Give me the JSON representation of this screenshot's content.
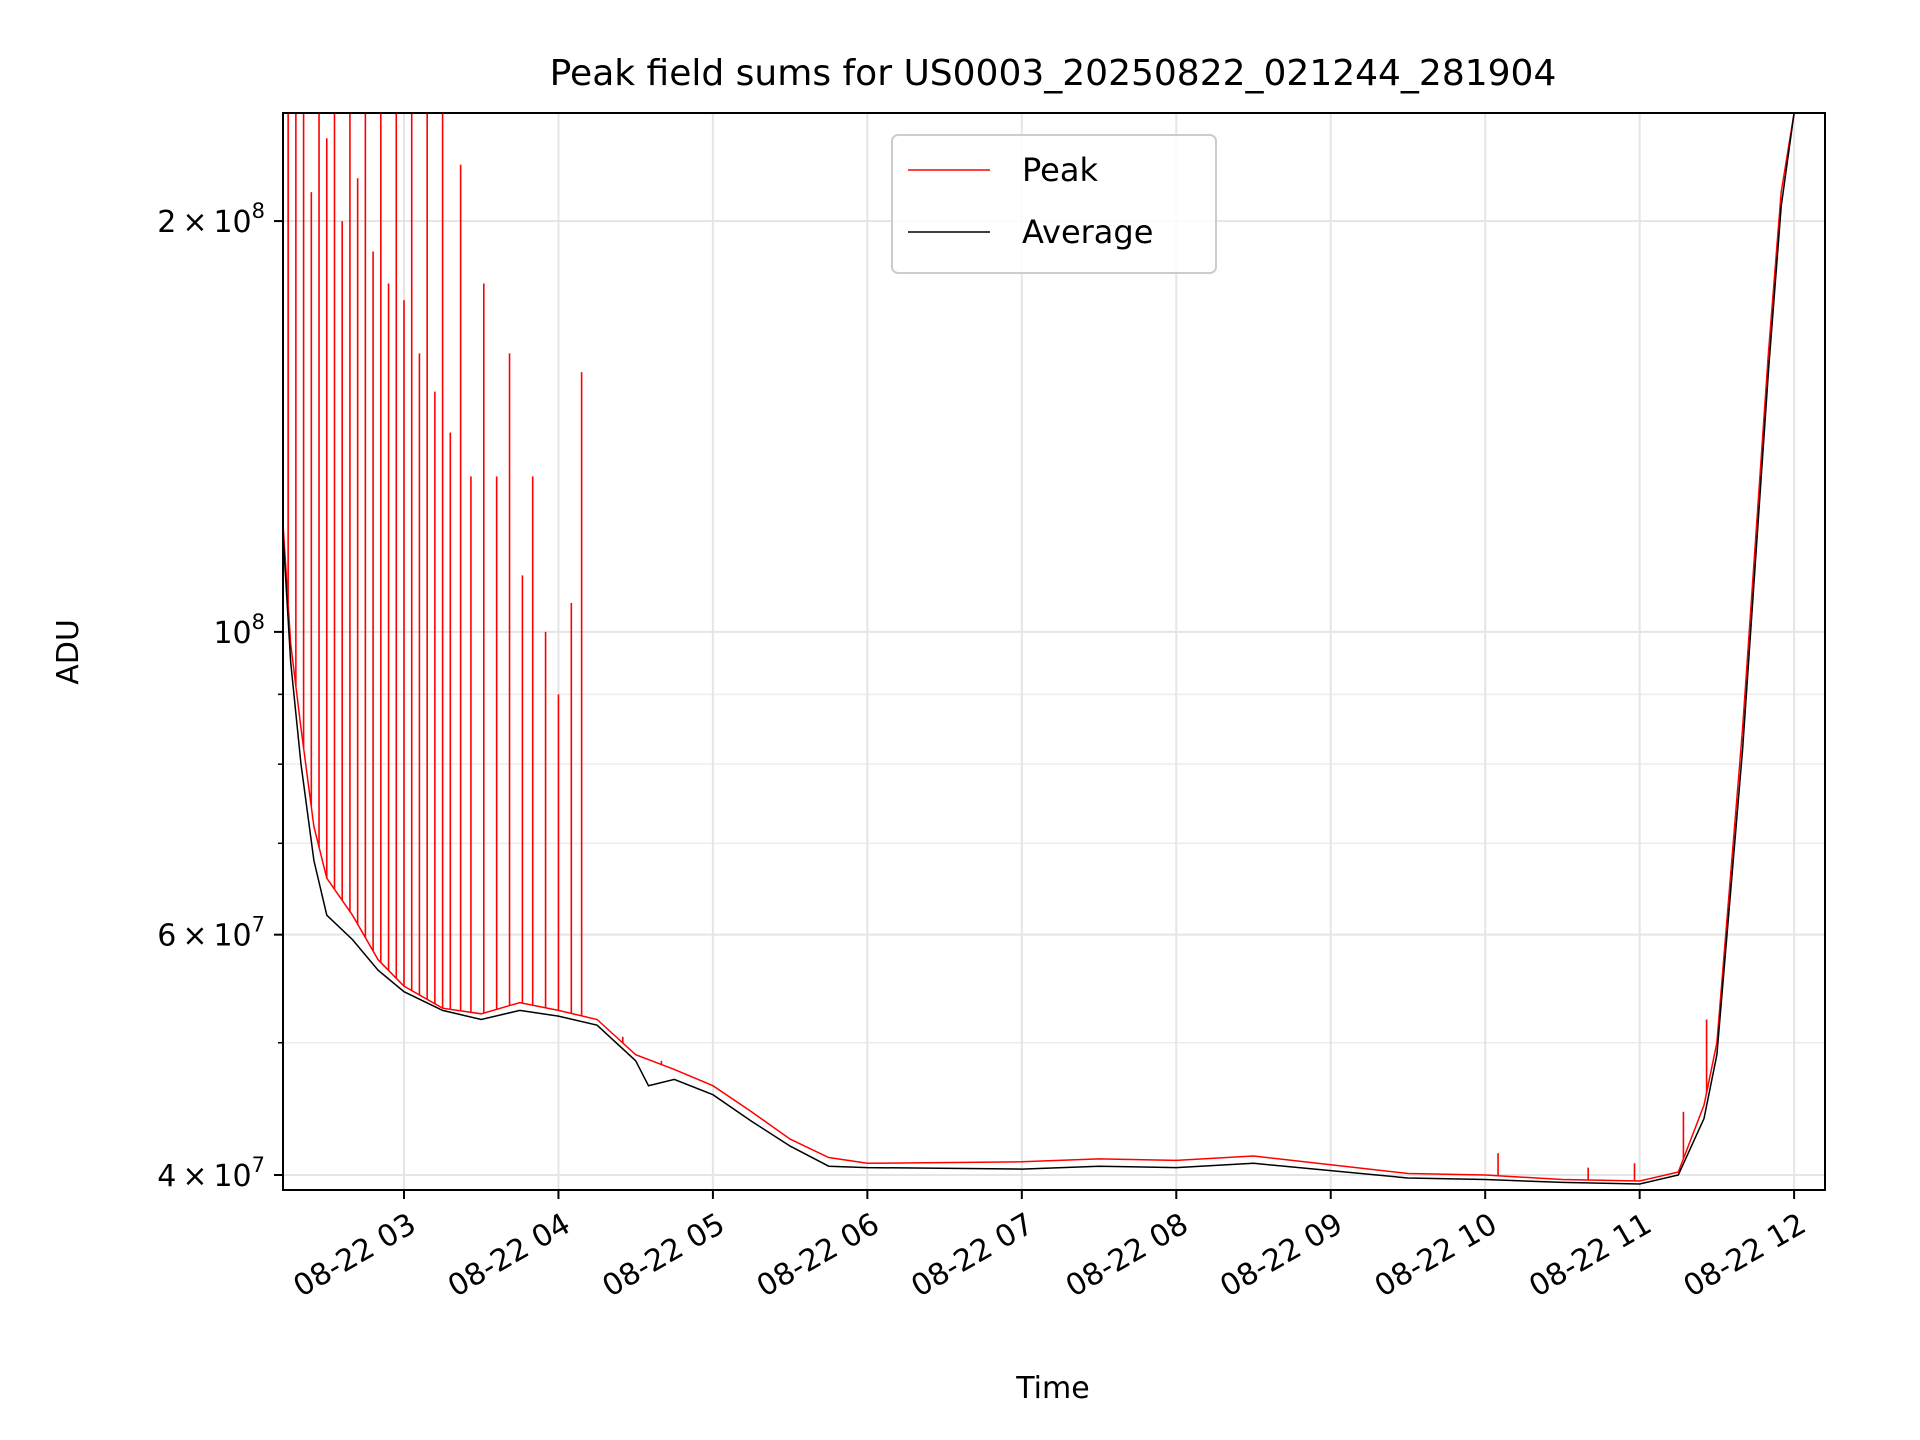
{
  "chart_data": {
    "type": "line",
    "title": "Peak field sums for US0003_20250822_021244_281904",
    "xlabel": "Time",
    "ylabel": "ADU",
    "yscale": "log",
    "grid": true,
    "legend_position": "top-center",
    "x_range": [
      "2025-08-22 02:13",
      "2025-08-22 12:12"
    ],
    "y_range": [
      39000000,
      240000000
    ],
    "x_ticks": [
      {
        "t": "2025-08-22 03:00",
        "label": "08-22 03"
      },
      {
        "t": "2025-08-22 04:00",
        "label": "08-22 04"
      },
      {
        "t": "2025-08-22 05:00",
        "label": "08-22 05"
      },
      {
        "t": "2025-08-22 06:00",
        "label": "08-22 06"
      },
      {
        "t": "2025-08-22 07:00",
        "label": "08-22 07"
      },
      {
        "t": "2025-08-22 08:00",
        "label": "08-22 08"
      },
      {
        "t": "2025-08-22 09:00",
        "label": "08-22 09"
      },
      {
        "t": "2025-08-22 10:00",
        "label": "08-22 10"
      },
      {
        "t": "2025-08-22 11:00",
        "label": "08-22 11"
      },
      {
        "t": "2025-08-22 12:00",
        "label": "08-22 12"
      }
    ],
    "y_ticks": [
      {
        "value": 40000000,
        "mantissa": "4",
        "exponent": "7"
      },
      {
        "value": 60000000,
        "mantissa": "6",
        "exponent": "7"
      },
      {
        "value": 100000000,
        "mantissa": "",
        "exponent": "8"
      },
      {
        "value": 200000000,
        "mantissa": "2",
        "exponent": "8"
      }
    ],
    "series": [
      {
        "name": "Peak",
        "color": "#ff0000",
        "baseline": [
          [
            "2025-08-22 02:13",
            120000000
          ],
          [
            "2025-08-22 02:16",
            98000000
          ],
          [
            "2025-08-22 02:20",
            85000000
          ],
          [
            "2025-08-22 02:25",
            72000000
          ],
          [
            "2025-08-22 02:30",
            66000000
          ],
          [
            "2025-08-22 02:40",
            62000000
          ],
          [
            "2025-08-22 02:50",
            57500000
          ],
          [
            "2025-08-22 03:00",
            55000000
          ],
          [
            "2025-08-22 03:15",
            53000000
          ],
          [
            "2025-08-22 03:30",
            52500000
          ],
          [
            "2025-08-22 03:45",
            53500000
          ],
          [
            "2025-08-22 04:00",
            52800000
          ],
          [
            "2025-08-22 04:15",
            52000000
          ],
          [
            "2025-08-22 04:30",
            49000000
          ],
          [
            "2025-08-22 04:45",
            47800000
          ],
          [
            "2025-08-22 05:00",
            46500000
          ],
          [
            "2025-08-22 05:15",
            44500000
          ],
          [
            "2025-08-22 05:30",
            42500000
          ],
          [
            "2025-08-22 05:45",
            41200000
          ],
          [
            "2025-08-22 06:00",
            40800000
          ],
          [
            "2025-08-22 07:00",
            40900000
          ],
          [
            "2025-08-22 07:30",
            41100000
          ],
          [
            "2025-08-22 08:00",
            41000000
          ],
          [
            "2025-08-22 08:30",
            41300000
          ],
          [
            "2025-08-22 09:00",
            40700000
          ],
          [
            "2025-08-22 09:30",
            40100000
          ],
          [
            "2025-08-22 10:00",
            40000000
          ],
          [
            "2025-08-22 10:30",
            39700000
          ],
          [
            "2025-08-22 11:00",
            39600000
          ],
          [
            "2025-08-22 11:15",
            40200000
          ],
          [
            "2025-08-22 11:25",
            45000000
          ],
          [
            "2025-08-22 11:30",
            50000000
          ],
          [
            "2025-08-22 11:40",
            85000000
          ],
          [
            "2025-08-22 11:50",
            160000000
          ],
          [
            "2025-08-22 11:55",
            210000000
          ],
          [
            "2025-08-22 12:00",
            240000000
          ]
        ],
        "spikes": [
          [
            "2025-08-22 02:15",
            240000000
          ],
          [
            "2025-08-22 02:18",
            240000000
          ],
          [
            "2025-08-22 02:21",
            240000000
          ],
          [
            "2025-08-22 02:24",
            210000000
          ],
          [
            "2025-08-22 02:27",
            240000000
          ],
          [
            "2025-08-22 02:30",
            230000000
          ],
          [
            "2025-08-22 02:33",
            240000000
          ],
          [
            "2025-08-22 02:36",
            200000000
          ],
          [
            "2025-08-22 02:39",
            240000000
          ],
          [
            "2025-08-22 02:42",
            215000000
          ],
          [
            "2025-08-22 02:45",
            240000000
          ],
          [
            "2025-08-22 02:48",
            190000000
          ],
          [
            "2025-08-22 02:51",
            240000000
          ],
          [
            "2025-08-22 02:54",
            180000000
          ],
          [
            "2025-08-22 02:57",
            240000000
          ],
          [
            "2025-08-22 03:00",
            175000000
          ],
          [
            "2025-08-22 03:03",
            240000000
          ],
          [
            "2025-08-22 03:06",
            160000000
          ],
          [
            "2025-08-22 03:09",
            240000000
          ],
          [
            "2025-08-22 03:12",
            150000000
          ],
          [
            "2025-08-22 03:15",
            240000000
          ],
          [
            "2025-08-22 03:18",
            140000000
          ],
          [
            "2025-08-22 03:22",
            220000000
          ],
          [
            "2025-08-22 03:26",
            130000000
          ],
          [
            "2025-08-22 03:31",
            180000000
          ],
          [
            "2025-08-22 03:36",
            130000000
          ],
          [
            "2025-08-22 03:41",
            160000000
          ],
          [
            "2025-08-22 03:46",
            110000000
          ],
          [
            "2025-08-22 03:50",
            130000000
          ],
          [
            "2025-08-22 03:55",
            100000000
          ],
          [
            "2025-08-22 04:00",
            90000000
          ],
          [
            "2025-08-22 04:05",
            105000000
          ],
          [
            "2025-08-22 04:09",
            155000000
          ],
          [
            "2025-08-22 04:15",
            52000000
          ],
          [
            "2025-08-22 04:25",
            50500000
          ],
          [
            "2025-08-22 04:40",
            48500000
          ],
          [
            "2025-08-22 10:05",
            41500000
          ],
          [
            "2025-08-22 10:40",
            40500000
          ],
          [
            "2025-08-22 10:58",
            40800000
          ],
          [
            "2025-08-22 11:17",
            44500000
          ],
          [
            "2025-08-22 11:26",
            52000000
          ]
        ]
      },
      {
        "name": "Average",
        "color": "#000000",
        "baseline": [
          [
            "2025-08-22 02:13",
            118000000
          ],
          [
            "2025-08-22 02:16",
            95000000
          ],
          [
            "2025-08-22 02:20",
            80000000
          ],
          [
            "2025-08-22 02:25",
            68000000
          ],
          [
            "2025-08-22 02:30",
            62000000
          ],
          [
            "2025-08-22 02:40",
            59500000
          ],
          [
            "2025-08-22 02:50",
            56500000
          ],
          [
            "2025-08-22 03:00",
            54500000
          ],
          [
            "2025-08-22 03:15",
            52800000
          ],
          [
            "2025-08-22 03:30",
            52000000
          ],
          [
            "2025-08-22 03:45",
            52800000
          ],
          [
            "2025-08-22 04:00",
            52300000
          ],
          [
            "2025-08-22 04:15",
            51500000
          ],
          [
            "2025-08-22 04:30",
            48500000
          ],
          [
            "2025-08-22 04:35",
            46500000
          ],
          [
            "2025-08-22 04:45",
            47000000
          ],
          [
            "2025-08-22 05:00",
            45800000
          ],
          [
            "2025-08-22 05:15",
            43800000
          ],
          [
            "2025-08-22 05:30",
            42000000
          ],
          [
            "2025-08-22 05:45",
            40600000
          ],
          [
            "2025-08-22 06:00",
            40500000
          ],
          [
            "2025-08-22 07:00",
            40400000
          ],
          [
            "2025-08-22 07:30",
            40600000
          ],
          [
            "2025-08-22 08:00",
            40500000
          ],
          [
            "2025-08-22 08:30",
            40800000
          ],
          [
            "2025-08-22 09:00",
            40300000
          ],
          [
            "2025-08-22 09:30",
            39800000
          ],
          [
            "2025-08-22 10:00",
            39700000
          ],
          [
            "2025-08-22 10:30",
            39500000
          ],
          [
            "2025-08-22 11:00",
            39400000
          ],
          [
            "2025-08-22 11:15",
            40000000
          ],
          [
            "2025-08-22 11:25",
            44000000
          ],
          [
            "2025-08-22 11:30",
            49000000
          ],
          [
            "2025-08-22 11:40",
            82000000
          ],
          [
            "2025-08-22 11:50",
            155000000
          ],
          [
            "2025-08-22 11:55",
            205000000
          ],
          [
            "2025-08-22 12:00",
            240000000
          ]
        ]
      }
    ]
  }
}
